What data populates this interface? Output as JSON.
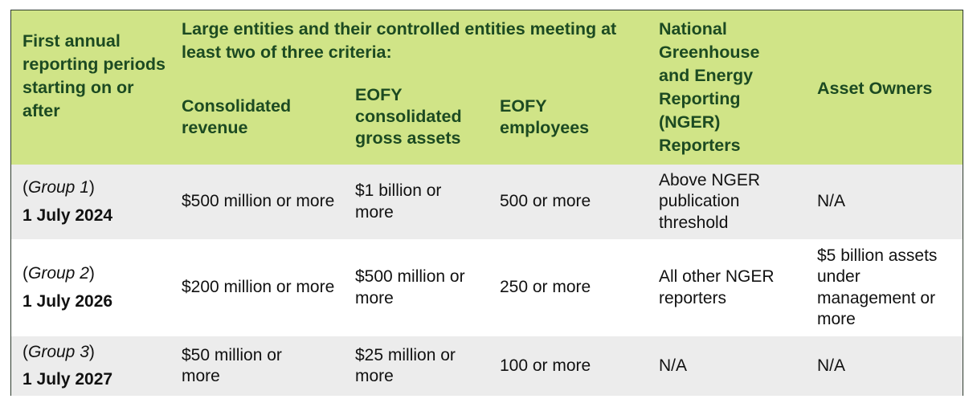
{
  "header": {
    "period": "First annual reporting periods starting on or after",
    "large_entities": "Large entities and their controlled entities meeting at least two of three criteria:",
    "revenue": "Consolidated revenue",
    "assets": "EOFY consolidated gross assets",
    "employees": "EOFY employees",
    "nger": "National Greenhouse and Energy Reporting (NGER) Reporters",
    "asset_owners": "Asset Owners"
  },
  "rows": [
    {
      "group": "Group 1",
      "date": "1 July 2024",
      "revenue": "$500 million or more",
      "assets": "$1 billion or more",
      "employees": "500 or more",
      "nger": "Above NGER publication threshold",
      "asset_owners": "N/A"
    },
    {
      "group": "Group 2",
      "date": "1 July 2026",
      "revenue": "$200 million or more",
      "assets": "$500 million or more",
      "employees": "250 or more",
      "nger": "All other NGER reporters",
      "asset_owners": "$5 billion assets under management or more"
    },
    {
      "group": "Group 3",
      "date": "1 July 2027",
      "revenue": "$50 million or more",
      "assets": "$25 million or more",
      "employees": "100 or more",
      "nger": "N/A",
      "asset_owners": "N/A"
    }
  ]
}
